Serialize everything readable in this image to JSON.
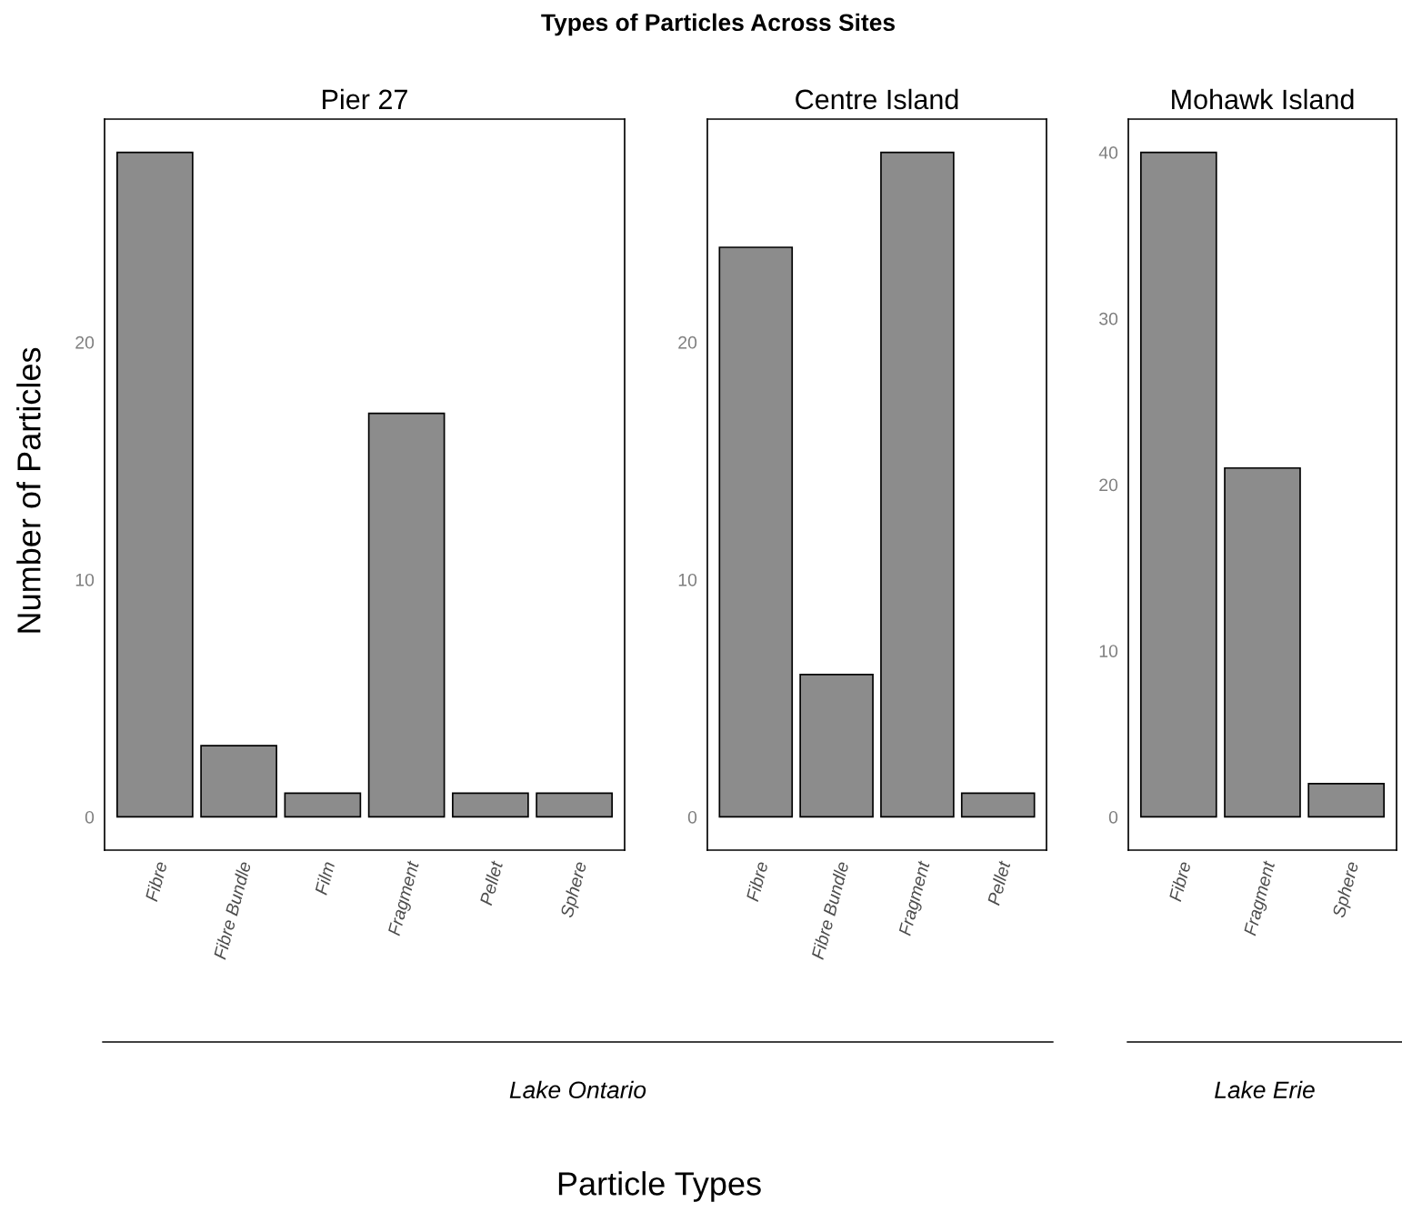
{
  "chart_data": [
    {
      "type": "bar",
      "title": "Pier 27",
      "ylabel": "Number of Particles",
      "categories": [
        "Fibre",
        "Fibre Bundle",
        "Film",
        "Fragment",
        "Pellet",
        "Sphere"
      ],
      "values": [
        28,
        3,
        1,
        17,
        1,
        1
      ],
      "color": "#8c8c8c",
      "ylim": [
        -1.4,
        29.4
      ],
      "yticks": [
        0,
        10,
        20
      ],
      "grid": false,
      "annotations": [
        "Types of Particles Across Sites",
        "Lake Ontario"
      ]
    },
    {
      "type": "bar",
      "title": "Centre Island",
      "xlabel": "Particle Types",
      "categories": [
        "Fibre",
        "Fibre Bundle",
        "Fragment",
        "Pellet"
      ],
      "values": [
        24,
        6,
        28,
        1
      ],
      "color": "#8c8c8c",
      "ylim": [
        -1.4,
        29.4
      ],
      "yticks": [
        0,
        10,
        20
      ],
      "grid": false
    },
    {
      "type": "bar",
      "title": "Mohawk Island",
      "categories": [
        "Fibre",
        "Fragment",
        "Sphere"
      ],
      "values": [
        40,
        21,
        2
      ],
      "color": "#8c8c8c",
      "ylim": [
        -2,
        42
      ],
      "yticks": [
        0,
        10,
        20,
        30,
        40
      ],
      "grid": false,
      "annotations": [
        "Lake Erie"
      ]
    }
  ]
}
